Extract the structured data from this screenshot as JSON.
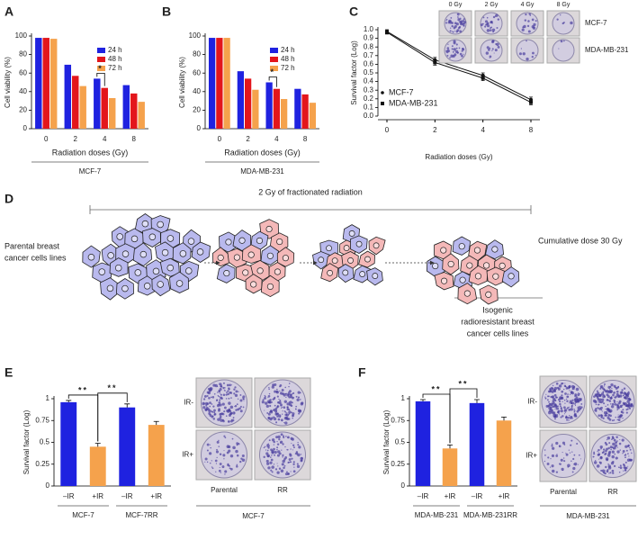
{
  "chart_data": [
    {
      "panel": "A",
      "type": "bar",
      "y_label": "Cell viability (%)",
      "x_label": "Radiation doses (Gy)",
      "subtitle": "MCF-7",
      "categories": [
        "0",
        "2",
        "4",
        "8"
      ],
      "series": [
        {
          "name": "24 h",
          "color": "#1f22e0",
          "values": [
            98,
            69,
            54,
            47
          ]
        },
        {
          "name": "48 h",
          "color": "#e3161c",
          "values": [
            98,
            57,
            44,
            38
          ]
        },
        {
          "name": "72 h",
          "color": "#f5a24c",
          "values": [
            97,
            46,
            33,
            29
          ]
        }
      ],
      "ylim": [
        0,
        100
      ],
      "yticks": [
        0,
        20,
        40,
        60,
        80,
        100
      ],
      "annotations": [
        "*"
      ]
    },
    {
      "panel": "B",
      "type": "bar",
      "y_label": "Cell viability (%)",
      "x_label": "Radiation doses (Gy)",
      "subtitle": "MDA-MB-231",
      "categories": [
        "0",
        "2",
        "4",
        "8"
      ],
      "series": [
        {
          "name": "24 h",
          "color": "#1f22e0",
          "values": [
            98,
            62,
            50,
            43
          ]
        },
        {
          "name": "48 h",
          "color": "#e3161c",
          "values": [
            98,
            54,
            43,
            37
          ]
        },
        {
          "name": "72 h",
          "color": "#f5a24c",
          "values": [
            98,
            42,
            32,
            28
          ]
        }
      ],
      "ylim": [
        0,
        100
      ],
      "yticks": [
        0,
        20,
        40,
        60,
        80,
        100
      ],
      "annotations": [
        "*"
      ]
    },
    {
      "panel": "C",
      "type": "line",
      "y_label": "Survival factor (Log)",
      "x_label": "Radiation doses (Gy)",
      "categories": [
        "0",
        "2",
        "4",
        "8"
      ],
      "series": [
        {
          "name": "MCF-7",
          "color": "#111111",
          "marker": "circle",
          "values": [
            0.98,
            0.65,
            0.47,
            0.19
          ],
          "errors": [
            0.02,
            0.03,
            0.03,
            0.03
          ]
        },
        {
          "name": "MDA-MB-231",
          "color": "#111111",
          "marker": "square",
          "values": [
            0.97,
            0.62,
            0.44,
            0.16
          ],
          "errors": [
            0.02,
            0.03,
            0.03,
            0.03
          ]
        }
      ],
      "ylim": [
        0,
        1
      ],
      "yticks": [
        {
          "value": 0,
          "label": "0.0"
        },
        0.1,
        0.2,
        0.3,
        0.4,
        0.5,
        0.6,
        0.7,
        0.8,
        0.9,
        {
          "value": 1,
          "label": "1.0"
        }
      ],
      "images": {
        "columns": [
          "0 Gy",
          "2 Gy",
          "4 Gy",
          "8 Gy"
        ],
        "rows": [
          "MCF-7",
          "MDA-MB-231"
        ]
      }
    },
    {
      "panel": "E",
      "type": "bar",
      "y_label": "Survival factor (Log)",
      "categories": [
        "–IR",
        "+IR",
        "–IR",
        "+IR"
      ],
      "groups": [
        "MCF-7",
        "MCF-7RR"
      ],
      "values": [
        0.96,
        0.45,
        0.9,
        0.7
      ],
      "errors": [
        0.02,
        0.04,
        0.04,
        0.04
      ],
      "colors": [
        "#1f22e0",
        "#f5a24c",
        "#1f22e0",
        "#f5a24c"
      ],
      "ylim": [
        0,
        1
      ],
      "yticks": [
        0,
        0.25,
        0.5,
        0.75,
        1
      ],
      "annotations": [
        "**",
        "**"
      ],
      "images": {
        "rows": [
          "IR-",
          "IR+"
        ],
        "columns": [
          "Parental",
          "RR"
        ],
        "caption": "MCF-7"
      }
    },
    {
      "panel": "F",
      "type": "bar",
      "y_label": "Survival factor (Log)",
      "categories": [
        "–IR",
        "+IR",
        "–IR",
        "+IR"
      ],
      "groups": [
        "MDA-MB-231",
        "MDA-MB-231RR"
      ],
      "values": [
        0.97,
        0.43,
        0.95,
        0.75
      ],
      "errors": [
        0.02,
        0.04,
        0.04,
        0.04
      ],
      "colors": [
        "#1f22e0",
        "#f5a24c",
        "#1f22e0",
        "#f5a24c"
      ],
      "ylim": [
        0,
        1
      ],
      "yticks": [
        0,
        0.25,
        0.5,
        0.75,
        1
      ],
      "annotations": [
        "**",
        "**"
      ],
      "images": {
        "rows": [
          "IR-",
          "IR+"
        ],
        "columns": [
          "Parental",
          "RR"
        ],
        "caption": "MDA-MB-231"
      }
    }
  ],
  "diagram": {
    "panel": "D",
    "title": "2 Gy of fractionated radiation",
    "start_label": [
      "Parental breast",
      "cancer cells lines"
    ],
    "dose_label": "Cumulative dose 30 Gy",
    "end_label": [
      "Isogenic",
      "radioresistant breast",
      "cancer cells lines"
    ]
  }
}
